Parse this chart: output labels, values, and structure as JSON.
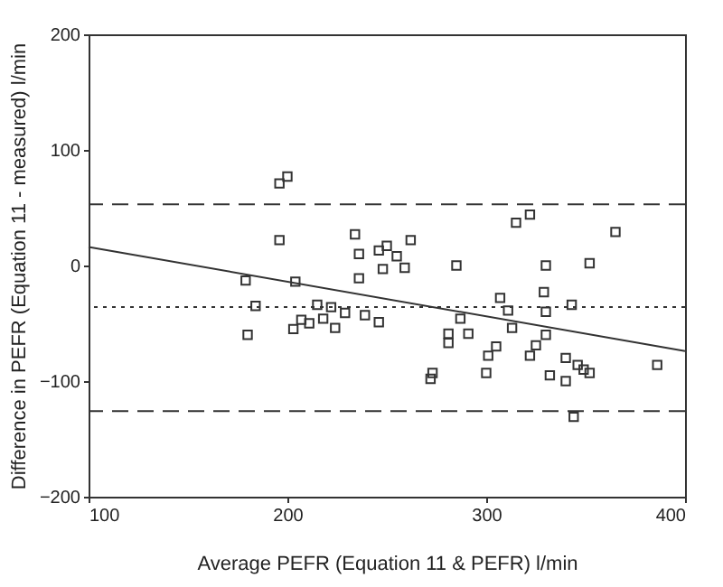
{
  "chart_data": {
    "type": "scatter",
    "xlabel": "Average PEFR (Equation 11 & PEFR) l/min",
    "ylabel": "Difference in PEFR (Equation 11 - measured) l/min",
    "xlim": [
      100,
      400
    ],
    "ylim": [
      -200,
      200
    ],
    "xticks": [
      100,
      200,
      300,
      400
    ],
    "yticks": [
      -200,
      -100,
      0,
      100,
      200
    ],
    "grid": false,
    "marker": "square",
    "series": [
      {
        "color": "#333333",
        "x": [
          196,
          200,
          196,
          234,
          236,
          246,
          250,
          248,
          255,
          262,
          259,
          285,
          315,
          322,
          365,
          330,
          352,
          179,
          204,
          236,
          184,
          180,
          203,
          207,
          211,
          215,
          218,
          222,
          224,
          229,
          239,
          246,
          307,
          311,
          329,
          330,
          343,
          287,
          281,
          291,
          281,
          313,
          330,
          305,
          301,
          325,
          322,
          340,
          346,
          349,
          352,
          340,
          332,
          300,
          273,
          272,
          386,
          344
        ],
        "values": [
          71,
          77,
          22,
          27,
          10,
          13,
          17,
          -3,
          8,
          22,
          -2,
          0,
          37,
          44,
          29,
          0,
          2,
          -13,
          -14,
          -11,
          -35,
          -60,
          -55,
          -47,
          -50,
          -34,
          -46,
          -36,
          -54,
          -41,
          -43,
          -49,
          -28,
          -39,
          -23,
          -40,
          -34,
          -46,
          -59,
          -59,
          -67,
          -54,
          -60,
          -70,
          -78,
          -69,
          -78,
          -80,
          -86,
          -90,
          -93,
          -100,
          -95,
          -93,
          -93,
          -98,
          -86,
          -131
        ]
      },
      {
        "type": "line",
        "marker": "none",
        "color": "#333333",
        "x": [
          100,
          400
        ],
        "values": [
          16,
          -74
        ]
      }
    ],
    "ref_lines": [
      {
        "axis": "y",
        "value": 53,
        "color": "#333333",
        "line_style": "dashed"
      },
      {
        "axis": "y",
        "value": -36,
        "color": "#333333",
        "line_style": "dotted"
      },
      {
        "axis": "y",
        "value": -126,
        "color": "#333333",
        "line_style": "dashed"
      }
    ]
  }
}
